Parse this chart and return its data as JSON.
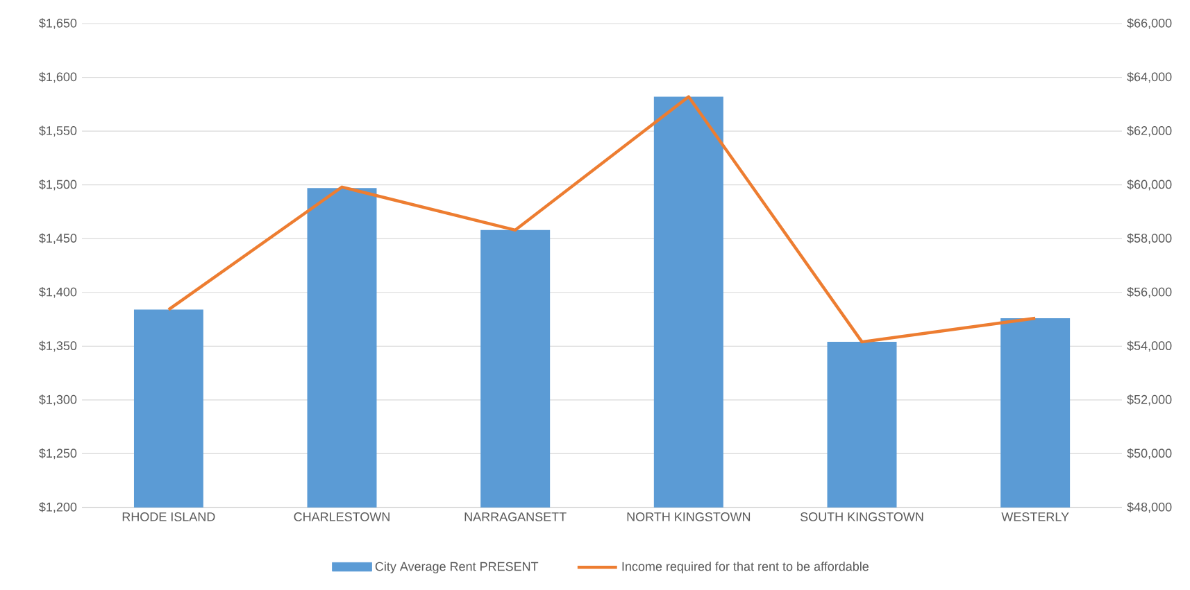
{
  "chart_data": {
    "type": "bar",
    "categories": [
      "RHODE ISLAND",
      "CHARLESTOWN",
      "NARRAGANSETT",
      "NORTH KINGSTOWN",
      "SOUTH KINGSTOWN",
      "WESTERLY"
    ],
    "series": [
      {
        "name": "City Average Rent  PRESENT",
        "color": "#5b9bd5",
        "values": [
          1384,
          1497,
          1458,
          1582,
          1354,
          1376
        ]
      },
      {
        "name": "Income required for that rent to be affordable",
        "type": "line",
        "axis": "y2",
        "color": "#ed7d31",
        "values": [
          55360,
          59920,
          58320,
          63280,
          54160,
          55040
        ]
      }
    ],
    "ylim": [
      1200,
      1650
    ],
    "yticks": [
      {
        "value": 1200,
        "label": "$1,200"
      },
      {
        "value": 1250,
        "label": "$1,250"
      },
      {
        "value": 1300,
        "label": "$1,300"
      },
      {
        "value": 1350,
        "label": "$1,350"
      },
      {
        "value": 1400,
        "label": "$1,400"
      },
      {
        "value": 1450,
        "label": "$1,450"
      },
      {
        "value": 1500,
        "label": "$1,500"
      },
      {
        "value": 1550,
        "label": "$1,550"
      },
      {
        "value": 1600,
        "label": "$1,600"
      },
      {
        "value": 1650,
        "label": "$1,650"
      }
    ],
    "y2lim": [
      48000,
      66000
    ],
    "y2ticks": [
      {
        "value": 48000,
        "label": "$48,000"
      },
      {
        "value": 50000,
        "label": "$50,000"
      },
      {
        "value": 52000,
        "label": "$52,000"
      },
      {
        "value": 54000,
        "label": "$54,000"
      },
      {
        "value": 56000,
        "label": "$56,000"
      },
      {
        "value": 58000,
        "label": "$58,000"
      },
      {
        "value": 60000,
        "label": "$60,000"
      },
      {
        "value": 62000,
        "label": "$62,000"
      },
      {
        "value": 64000,
        "label": "$64,000"
      },
      {
        "value": 66000,
        "label": "$66,000"
      }
    ],
    "grid": "y",
    "legend": "bottom"
  }
}
